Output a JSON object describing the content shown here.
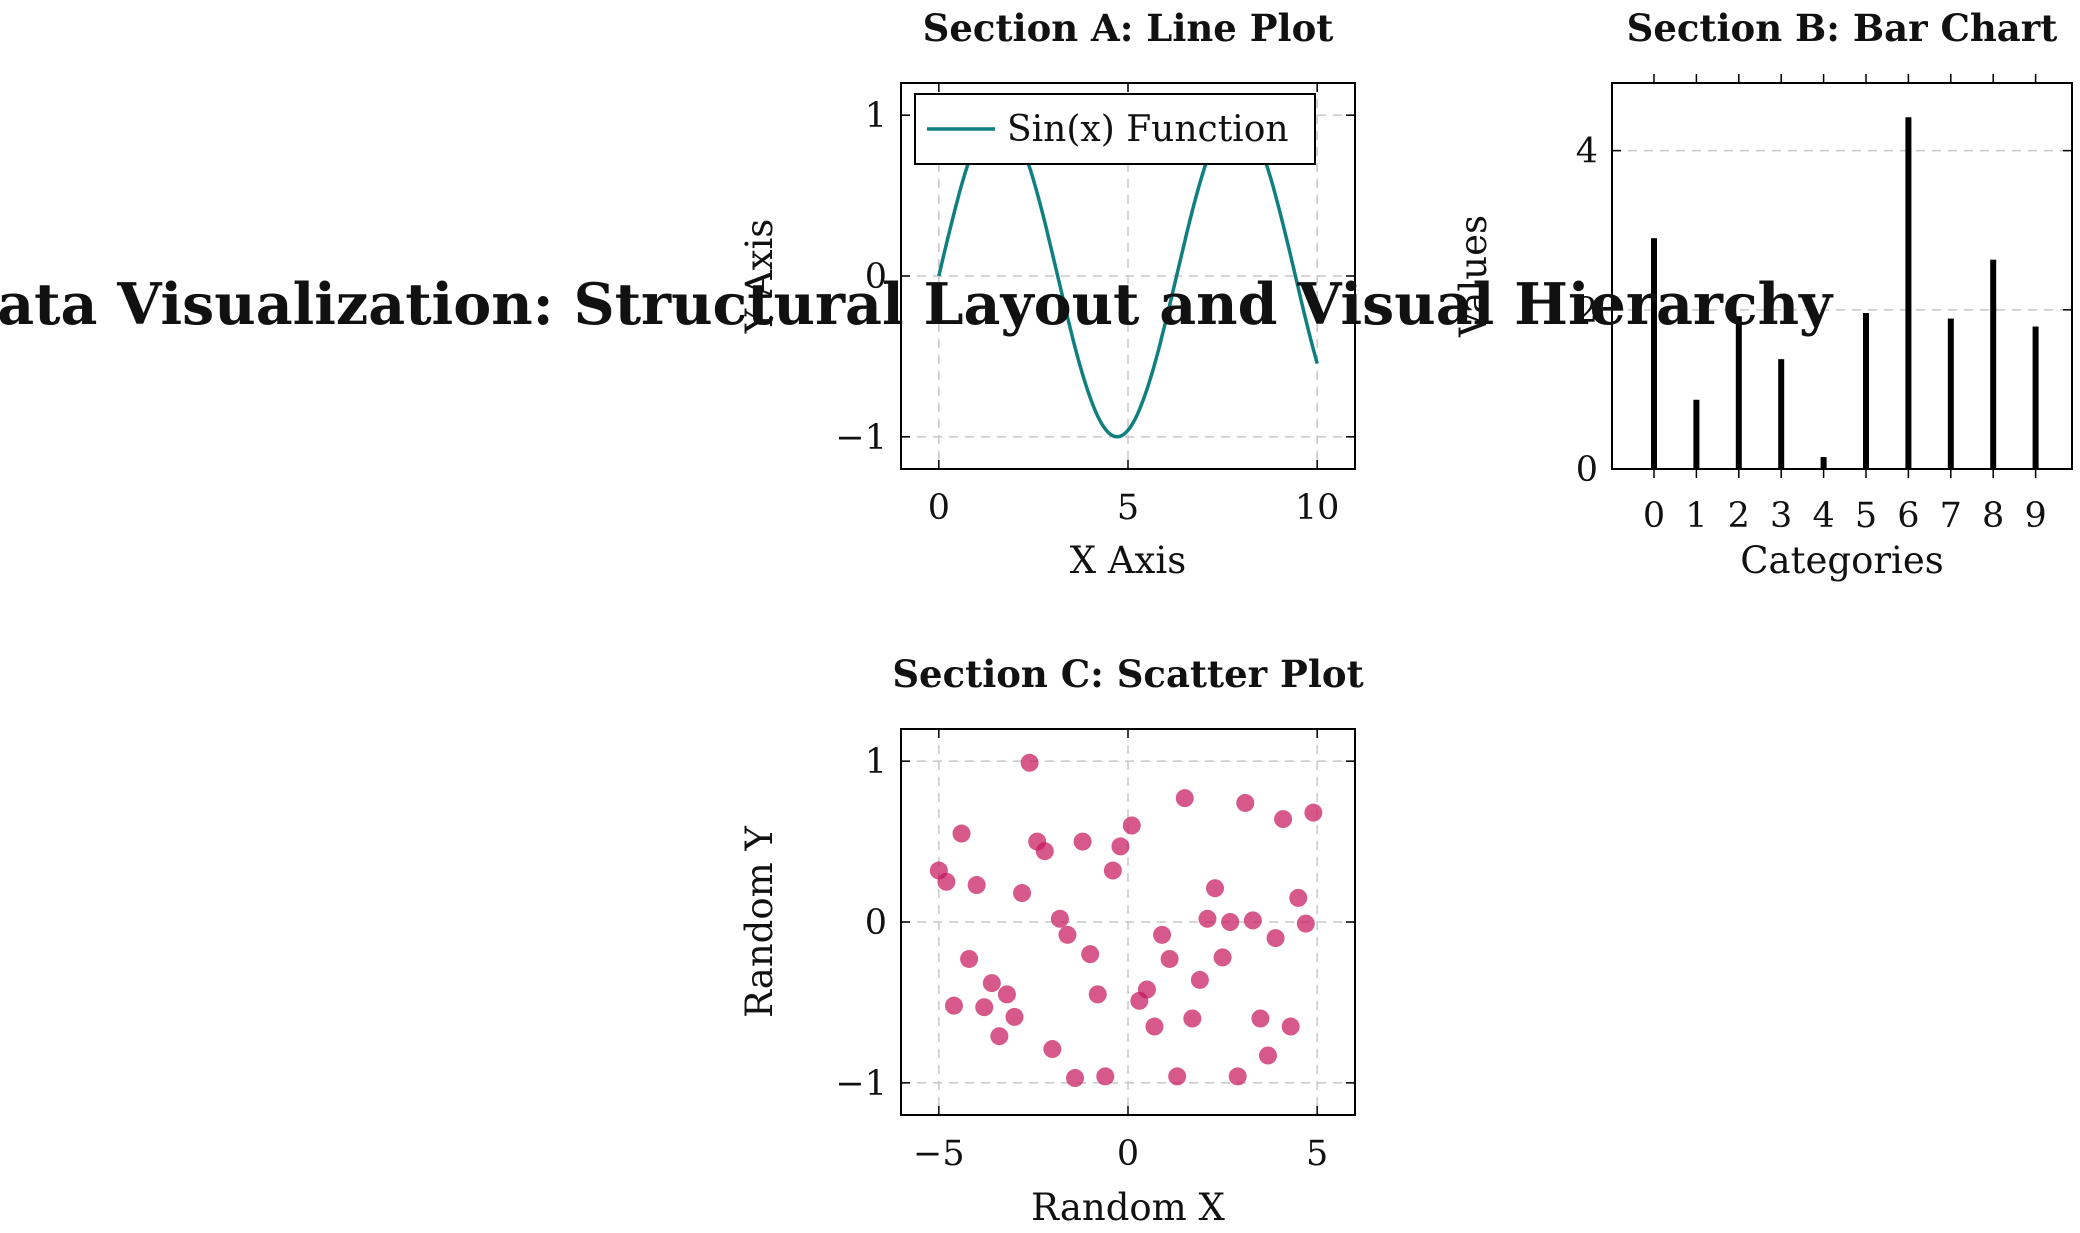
{
  "main_title": "Data Visualization: Structural Layout and Visual Hierarchy",
  "chart_data": [
    {
      "type": "line",
      "title": "Section A: Line Plot",
      "xlabel": "X Axis",
      "ylabel": "Y Axis",
      "xlim": [
        -1,
        11
      ],
      "ylim": [
        -1.2,
        1.2
      ],
      "xticks": [
        0,
        5,
        10
      ],
      "yticks": [
        -1,
        0,
        1
      ],
      "grid": true,
      "legend_placement": "top-left",
      "function": "sin(x)",
      "x_range": [
        0,
        10
      ],
      "color": "#0f7f7f",
      "series": [
        {
          "name": "Sin(x) Function",
          "x": [
            0,
            0.5,
            1,
            1.5,
            2,
            2.5,
            3,
            3.5,
            4,
            4.5,
            5,
            5.5,
            6,
            6.5,
            7,
            7.5,
            8,
            8.5,
            9,
            9.5,
            10
          ],
          "y": [
            0,
            0.479,
            0.841,
            0.997,
            0.909,
            0.598,
            0.141,
            -0.351,
            -0.757,
            -0.978,
            -0.959,
            -0.706,
            -0.279,
            0.215,
            0.657,
            0.938,
            0.989,
            0.798,
            0.412,
            -0.075,
            -0.544
          ]
        }
      ]
    },
    {
      "type": "bar",
      "title": "Section B: Bar Chart",
      "xlabel": "Categories",
      "ylabel": "Values",
      "categories": [
        "0",
        "1",
        "2",
        "3",
        "4",
        "5",
        "6",
        "7",
        "8",
        "9"
      ],
      "values": [
        2.9,
        0.87,
        1.92,
        1.38,
        0.15,
        1.96,
        4.42,
        1.89,
        2.63,
        1.79
      ],
      "ylim": [
        0,
        4.85
      ],
      "yticks": [
        0,
        2,
        4
      ],
      "grid": true,
      "color": "#000000"
    },
    {
      "type": "scatter",
      "title": "Section C: Scatter Plot",
      "xlabel": "Random X",
      "ylabel": "Random Y",
      "xlim": [
        -6,
        6
      ],
      "ylim": [
        -1.2,
        1.2
      ],
      "xticks": [
        -5,
        0,
        5
      ],
      "yticks": [
        -1,
        0,
        1
      ],
      "grid": true,
      "color": "#c8185e",
      "x": [
        -5.0,
        -4.8,
        -4.6,
        -4.4,
        -4.2,
        -4.0,
        -3.8,
        -3.6,
        -3.4,
        -3.2,
        -3.0,
        -2.8,
        -2.6,
        -2.4,
        -2.2,
        -2.0,
        -1.8,
        -1.6,
        -1.4,
        -1.2,
        -1.0,
        -0.8,
        -0.6,
        -0.4,
        -0.2,
        0.1,
        0.3,
        0.5,
        0.7,
        0.9,
        1.1,
        1.3,
        1.5,
        1.7,
        1.9,
        2.1,
        2.3,
        2.5,
        2.7,
        2.9,
        3.1,
        3.3,
        3.5,
        3.7,
        3.9,
        4.1,
        4.3,
        4.5,
        4.7,
        4.9
      ],
      "y": [
        0.32,
        0.25,
        -0.52,
        0.55,
        -0.23,
        0.23,
        -0.53,
        -0.38,
        -0.71,
        -0.45,
        -0.59,
        0.18,
        0.99,
        0.5,
        0.44,
        -0.79,
        0.02,
        -0.08,
        -0.97,
        0.5,
        -0.2,
        -0.45,
        -0.96,
        0.32,
        0.47,
        0.6,
        -0.49,
        -0.42,
        -0.65,
        -0.08,
        -0.23,
        -0.96,
        0.77,
        -0.6,
        -0.36,
        0.02,
        0.21,
        -0.22,
        0.0,
        -0.96,
        0.74,
        0.01,
        -0.6,
        -0.83,
        -0.1,
        0.64,
        -0.65,
        0.15,
        -0.01,
        0.68
      ]
    }
  ]
}
